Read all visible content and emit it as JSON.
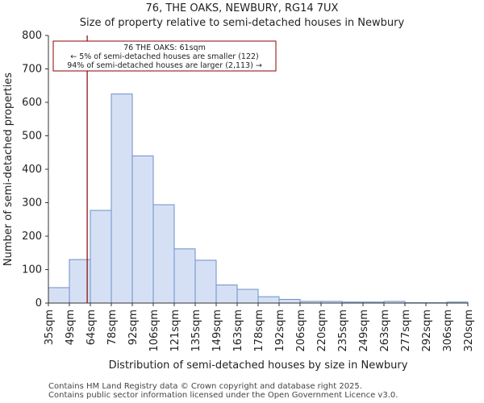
{
  "chart_data": {
    "type": "histogram",
    "title": "76, THE OAKS, NEWBURY, RG14 7UX",
    "subtitle": "Size of property relative to semi-detached houses in Newbury",
    "xlabel": "Distribution of semi-detached houses by size in Newbury",
    "ylabel": "Number of semi-detached properties",
    "ylim": [
      0,
      800
    ],
    "yticks": [
      0,
      100,
      200,
      300,
      400,
      500,
      600,
      700,
      800
    ],
    "categories": [
      "35sqm",
      "49sqm",
      "64sqm",
      "78sqm",
      "92sqm",
      "106sqm",
      "121sqm",
      "135sqm",
      "149sqm",
      "163sqm",
      "178sqm",
      "192sqm",
      "206sqm",
      "220sqm",
      "235sqm",
      "249sqm",
      "263sqm",
      "277sqm",
      "292sqm",
      "306sqm",
      "320sqm"
    ],
    "values": [
      46,
      130,
      277,
      625,
      440,
      294,
      162,
      128,
      54,
      41,
      19,
      11,
      5,
      5,
      3,
      3,
      5,
      1,
      1,
      3
    ],
    "bar_fill": "#d6e0f5",
    "bar_edge": "#6b8fc9",
    "marker": {
      "value_index": 1.85,
      "color": "#8b0000",
      "lines": [
        "76 THE OAKS: 61sqm",
        "← 5% of semi-detached houses are smaller (122)",
        "94% of semi-detached houses are larger (2,113) →"
      ]
    }
  },
  "footer": {
    "line1": "Contains HM Land Registry data © Crown copyright and database right 2025.",
    "line2": "Contains public sector information licensed under the Open Government Licence v3.0."
  }
}
